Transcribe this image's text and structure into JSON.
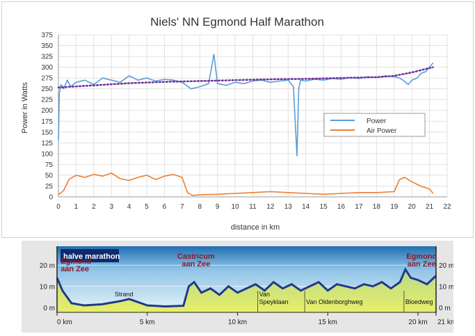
{
  "chart_data": [
    {
      "type": "line",
      "title": "Niels' NN Egmond Half Marathon",
      "xlabel": "distance in km",
      "ylabel": "Power in Watts",
      "xlim": [
        0,
        22
      ],
      "ylim": [
        0,
        375
      ],
      "x_ticks": [
        0,
        1,
        2,
        3,
        4,
        5,
        6,
        7,
        8,
        9,
        10,
        11,
        12,
        13,
        14,
        15,
        16,
        17,
        18,
        19,
        20,
        21,
        22
      ],
      "y_ticks": [
        0,
        25,
        50,
        75,
        100,
        125,
        150,
        175,
        200,
        225,
        250,
        275,
        300,
        325,
        350,
        375
      ],
      "grid": true,
      "legend_position": "right",
      "series": [
        {
          "name": "Power",
          "color": "#5b9bd5",
          "x": [
            0,
            0.05,
            0.15,
            0.3,
            0.5,
            0.7,
            1,
            1.5,
            2,
            2.5,
            3,
            3.5,
            4,
            4.5,
            5,
            5.5,
            6,
            6.5,
            7,
            7.5,
            8,
            8.5,
            8.8,
            9,
            9.5,
            10,
            10.5,
            11,
            11.5,
            12,
            12.5,
            13,
            13.3,
            13.5,
            13.6,
            13.7,
            14,
            14.5,
            15,
            15.5,
            16,
            16.5,
            17,
            17.5,
            18,
            18.5,
            19,
            19.3,
            19.5,
            19.8,
            20,
            20.3,
            20.5,
            20.8,
            21,
            21.2
          ],
          "values": [
            130,
            240,
            260,
            250,
            270,
            255,
            265,
            270,
            260,
            275,
            270,
            265,
            280,
            270,
            275,
            268,
            272,
            270,
            265,
            250,
            255,
            262,
            330,
            262,
            258,
            265,
            262,
            268,
            270,
            265,
            268,
            270,
            255,
            95,
            250,
            270,
            268,
            272,
            270,
            274,
            272,
            276,
            274,
            278,
            276,
            280,
            278,
            275,
            270,
            260,
            270,
            275,
            285,
            290,
            300,
            310
          ]
        },
        {
          "name": "Air Power",
          "color": "#ed7d31",
          "x": [
            0,
            0.3,
            0.6,
            1,
            1.5,
            2,
            2.5,
            3,
            3.5,
            4,
            4.5,
            5,
            5.5,
            6,
            6.5,
            7,
            7.3,
            7.6,
            8,
            9,
            10,
            11,
            12,
            13,
            14,
            15,
            16,
            17,
            18,
            19,
            19.3,
            19.6,
            20,
            20.5,
            21,
            21.2
          ],
          "values": [
            5,
            15,
            40,
            50,
            45,
            52,
            48,
            55,
            42,
            38,
            45,
            50,
            40,
            48,
            52,
            45,
            10,
            3,
            5,
            6,
            8,
            10,
            12,
            10,
            8,
            6,
            8,
            10,
            10,
            12,
            40,
            45,
            35,
            25,
            18,
            8
          ]
        },
        {
          "name": "",
          "color": "#7030a0",
          "style": "dotted",
          "x": [
            0,
            2,
            4,
            6,
            8,
            10,
            12,
            14,
            16,
            18,
            19,
            20,
            21,
            21.2
          ],
          "values": [
            253,
            258,
            263,
            266,
            268,
            270,
            272,
            273,
            275,
            277,
            280,
            288,
            298,
            300
          ]
        }
      ]
    },
    {
      "type": "area",
      "title": "halve marathon",
      "x_unit": "km",
      "xlim": [
        0,
        21
      ],
      "ylim": [
        0,
        25
      ],
      "x_ticks": [
        "0 km",
        "5 km",
        "10 km",
        "15 km",
        "20 km",
        "21 km"
      ],
      "y_ticks": [
        "0 m",
        "10 m",
        "20 m"
      ],
      "y_ticks_right": [
        "0 m",
        "10 m",
        "20 m"
      ],
      "annotations_place": [
        "Egmond aan Zee",
        "Castricum aan Zee",
        "Egmond aan Zee"
      ],
      "annotations_road": [
        "Strand",
        "Van Speyklaan",
        "Van Oldenborghweg",
        "Bloedweg"
      ],
      "x": [
        0,
        0.3,
        0.8,
        1.5,
        2.5,
        3.5,
        4,
        5,
        6,
        7,
        7.3,
        7.6,
        8,
        8.5,
        9,
        9.5,
        10,
        10.5,
        11,
        11.5,
        12,
        12.5,
        13,
        13.5,
        14,
        14.5,
        15,
        15.5,
        16,
        16.5,
        17,
        17.5,
        18,
        18.5,
        19,
        19.3,
        19.6,
        20,
        20.5,
        21
      ],
      "values": [
        14,
        8,
        2,
        1,
        1.5,
        3,
        4,
        1,
        0.5,
        0.8,
        10,
        12,
        7,
        9,
        6,
        10,
        7,
        9,
        11,
        8,
        12,
        9,
        11,
        8,
        10,
        12,
        8,
        11,
        10,
        9,
        11,
        10,
        12,
        9,
        12,
        18,
        14,
        13,
        11,
        15
      ]
    }
  ]
}
